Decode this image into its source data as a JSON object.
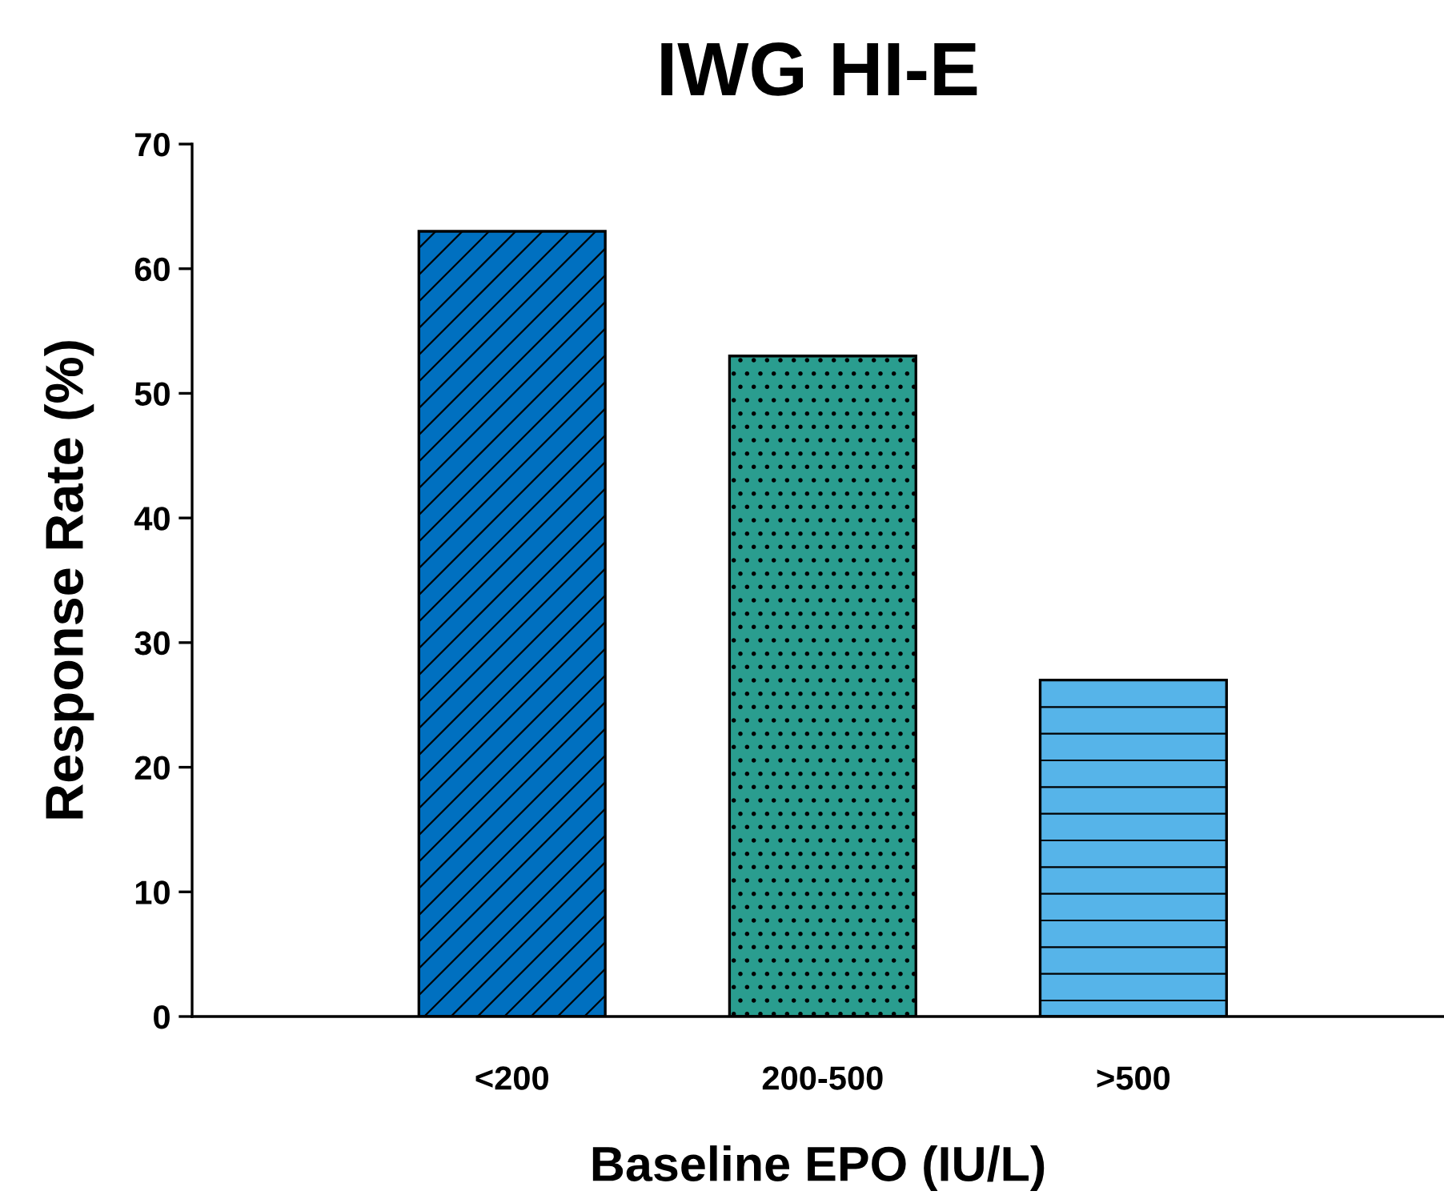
{
  "chart_data": {
    "type": "bar",
    "title": "IWG HI-E",
    "xlabel": "Baseline EPO (IU/L)",
    "ylabel": "Response Rate (%)",
    "categories": [
      "<200",
      "200-500",
      ">500"
    ],
    "values": [
      63,
      53,
      27
    ],
    "colors": [
      "#0070c0",
      "#2a9d8f",
      "#56b4e9"
    ],
    "ylim": [
      0,
      70
    ],
    "yticks": [
      0,
      10,
      20,
      30,
      40,
      50,
      60,
      70
    ],
    "grid": false,
    "legend": false
  }
}
